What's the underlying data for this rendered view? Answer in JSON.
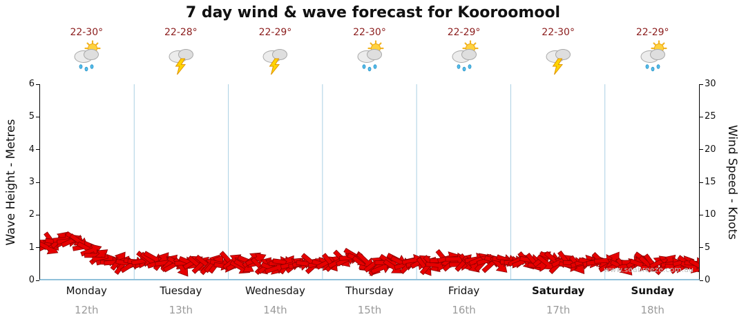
{
  "title": "7 day wind & wave forecast for Kooroomool",
  "watermark": "www.seabreeze.com.au",
  "axes": {
    "left_label": "Wave Height - Metres",
    "right_label": "Wind Speed - Knots",
    "left_ticks": [
      0,
      1,
      2,
      3,
      4,
      5,
      6
    ],
    "right_ticks": [
      0,
      5,
      10,
      15,
      20,
      25,
      30
    ]
  },
  "days": [
    {
      "label": "Monday",
      "date": "12th",
      "temp": "22-30°",
      "icon": "sun-cloud-rain",
      "bold": false
    },
    {
      "label": "Tuesday",
      "date": "13th",
      "temp": "22-28°",
      "icon": "cloud-lightning",
      "bold": false
    },
    {
      "label": "Wednesday",
      "date": "14th",
      "temp": "22-29°",
      "icon": "cloud-lightning",
      "bold": false
    },
    {
      "label": "Thursday",
      "date": "15th",
      "temp": "22-30°",
      "icon": "sun-cloud-rain",
      "bold": false
    },
    {
      "label": "Friday",
      "date": "16th",
      "temp": "22-29°",
      "icon": "sun-cloud-rain",
      "bold": false
    },
    {
      "label": "Saturday",
      "date": "17th",
      "temp": "22-30°",
      "icon": "cloud-lightning",
      "bold": true
    },
    {
      "label": "Sunday",
      "date": "18th",
      "temp": "22-29°",
      "icon": "sun-cloud-rain",
      "bold": true
    }
  ],
  "chart_data": {
    "type": "area",
    "title": "7 day wind & wave forecast for Kooroomool",
    "ylabel": "Wave Height - Metres",
    "y2label": "Wind Speed - Knots",
    "ylim": [
      0,
      6
    ],
    "y2lim": [
      0,
      30
    ],
    "grid": "vertical-day-separators",
    "x_categories": [
      "Monday 12th",
      "Tuesday 13th",
      "Wednesday 14th",
      "Thursday 15th",
      "Friday 16th",
      "Saturday 17th",
      "Sunday 18th"
    ],
    "points_per_day": 12,
    "units": "metres",
    "series": [
      {
        "name": "Wave Height (m)",
        "values": [
          1.4,
          1.38,
          1.42,
          1.45,
          1.5,
          1.45,
          1.3,
          1.1,
          0.95,
          0.85,
          0.8,
          0.8,
          0.85,
          0.8,
          0.85,
          0.9,
          0.85,
          0.78,
          0.75,
          0.8,
          0.85,
          0.8,
          0.75,
          0.8,
          0.8,
          0.75,
          0.8,
          0.85,
          0.8,
          0.75,
          0.7,
          0.75,
          0.8,
          0.85,
          0.8,
          0.75,
          0.8,
          0.85,
          0.95,
          1.0,
          0.95,
          0.85,
          0.7,
          0.65,
          0.75,
          0.8,
          0.85,
          0.8,
          0.8,
          0.75,
          0.8,
          0.85,
          0.9,
          0.85,
          0.8,
          0.85,
          0.9,
          0.85,
          0.8,
          0.8,
          0.85,
          0.9,
          0.85,
          0.8,
          0.85,
          0.9,
          0.85,
          0.8,
          0.75,
          0.8,
          0.85,
          0.8,
          0.8,
          0.85,
          0.8,
          0.75,
          0.8,
          0.85,
          0.9,
          0.8,
          0.75,
          0.7,
          0.75,
          0.7,
          0.7
        ]
      }
    ],
    "colors": {
      "series": "#e60000",
      "series_outline": "#8b0000",
      "grid": "#a9cfe3",
      "baseline": "#8fc0da",
      "temp_text": "#8b1c1c",
      "date_text": "#9a9a9a",
      "watermark": "#c4c4c4"
    }
  }
}
